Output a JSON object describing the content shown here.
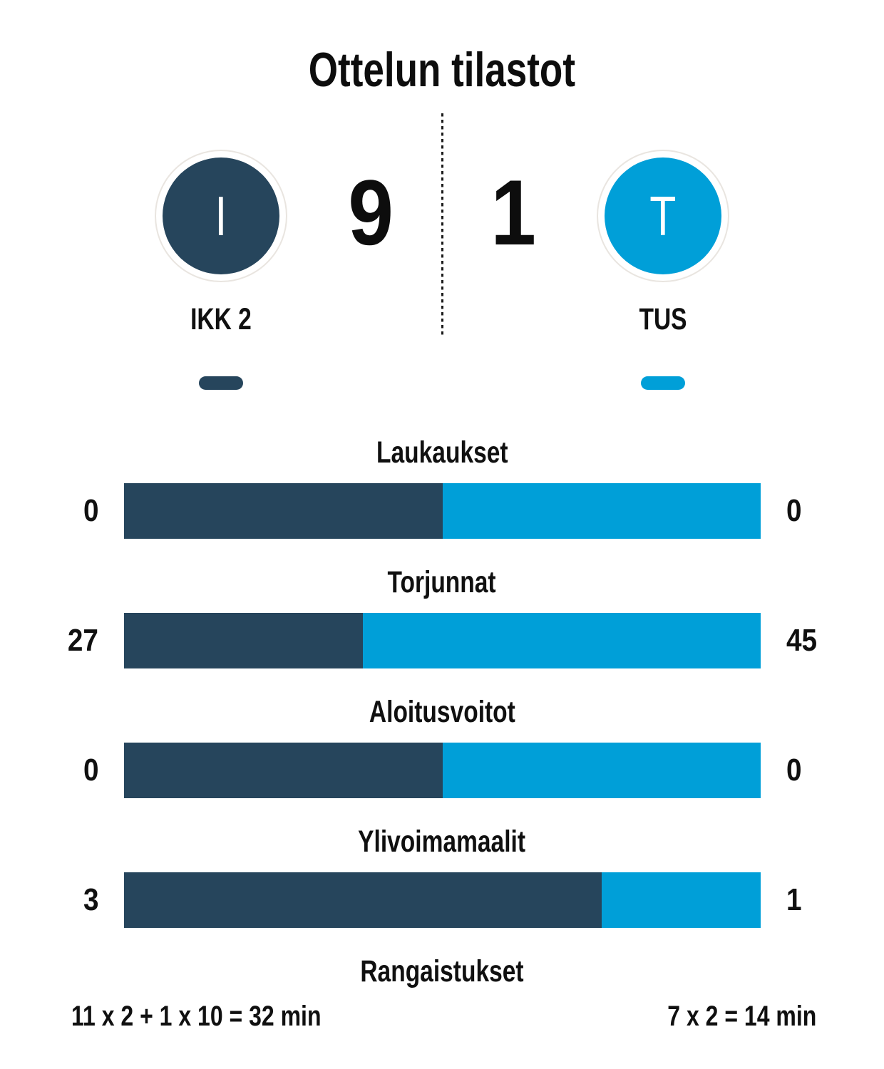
{
  "chart_data": {
    "type": "bar",
    "subtype": "opposed-horizontal-proportion-bars",
    "title": "Ottelun tilastot",
    "legend_position": "none",
    "grid": false,
    "home": {
      "name": "IKK 2",
      "initial": "I",
      "score": "9",
      "color": "#26455c"
    },
    "away": {
      "name": "TUS",
      "initial": "T",
      "score": "1",
      "color": "#009fd8"
    },
    "categories": [
      "Laukaukset",
      "Torjunnat",
      "Aloitusvoitot",
      "Ylivoimamaalit"
    ],
    "series": [
      {
        "name": "IKK 2",
        "values": [
          0,
          27,
          0,
          3
        ]
      },
      {
        "name": "TUS",
        "values": [
          0,
          45,
          0,
          1
        ]
      }
    ],
    "stats": [
      {
        "label": "Laukaukset",
        "home": 0,
        "away": 0,
        "home_display": "0",
        "away_display": "0"
      },
      {
        "label": "Torjunnat",
        "home": 27,
        "away": 45,
        "home_display": "27",
        "away_display": "45"
      },
      {
        "label": "Aloitusvoitot",
        "home": 0,
        "away": 0,
        "home_display": "0",
        "away_display": "0"
      },
      {
        "label": "Ylivoimamaalit",
        "home": 3,
        "away": 1,
        "home_display": "3",
        "away_display": "1"
      },
      {
        "label": "Rangaistukset",
        "home_display": "11 x 2 + 1 x 10 = 32 min",
        "away_display": "7 x 2 = 14 min"
      }
    ]
  }
}
